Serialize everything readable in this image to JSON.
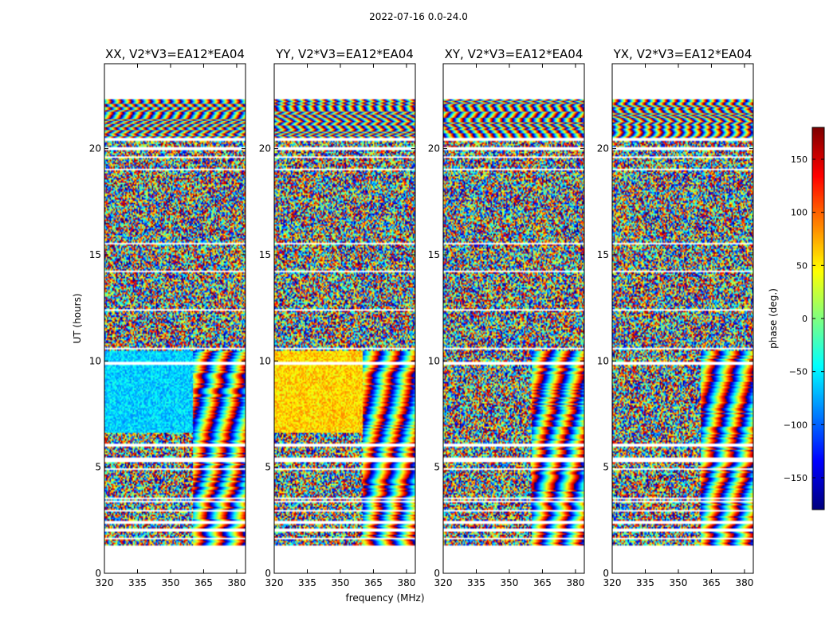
{
  "chart_data": {
    "type": "heatmap",
    "suptitle": "2022-07-16 0.0-24.0",
    "xlabel": "frequency (MHz)",
    "ylabel": "UT (hours)",
    "xlim": [
      320,
      384
    ],
    "ylim": [
      0,
      24
    ],
    "xticks": [
      "320",
      "335",
      "350",
      "365",
      "380"
    ],
    "yticks": [
      "0",
      "5",
      "10",
      "15",
      "20"
    ],
    "panels": [
      {
        "title": "XX, V2*V3=EA12*EA04",
        "mean_phase_deg": -60
      },
      {
        "title": "YY, V2*V3=EA12*EA04",
        "mean_phase_deg": 60
      },
      {
        "title": "XY, V2*V3=EA12*EA04",
        "mean_phase_deg": null
      },
      {
        "title": "YX, V2*V3=EA12*EA04",
        "mean_phase_deg": null
      }
    ],
    "colorbar": {
      "label": "phase (deg.)",
      "range": [
        -180,
        180
      ],
      "ticks": [
        "150",
        "100",
        "50",
        "0",
        "−50",
        "−100",
        "−150"
      ],
      "colormap": "jet"
    },
    "data_time_range_hours": [
      1.3,
      22.3
    ]
  }
}
